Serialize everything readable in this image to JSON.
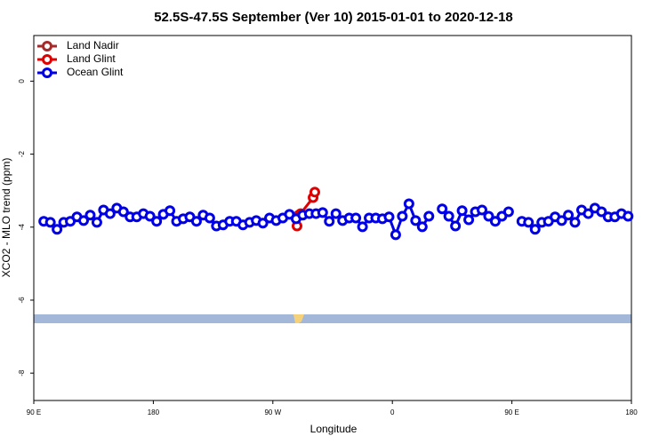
{
  "chart_data": {
    "type": "line",
    "title": "52.5S-47.5S September (Ver 10)   2015-01-01 to 2020-12-18",
    "x_label": "Longitude",
    "y_label": "XCO2 - MLO trend (ppm)",
    "xlim": [
      90,
      540
    ],
    "xticks": [
      {
        "value": 90,
        "label": "90 E"
      },
      {
        "value": 180,
        "label": "180"
      },
      {
        "value": 270,
        "label": "90 W"
      },
      {
        "value": 360,
        "label": "0"
      },
      {
        "value": 450,
        "label": "90 E"
      },
      {
        "value": 540,
        "label": "180"
      }
    ],
    "ylim": [
      -8.75,
      1.25
    ],
    "yticks": [
      0,
      -2,
      -4,
      -6,
      -8
    ],
    "legend": "top-left",
    "series": [
      {
        "name": "Land Nadir",
        "color": "#a52a2a",
        "x": [],
        "values": []
      },
      {
        "name": "Land Glint",
        "color": "#e00000",
        "x": [
          288.2,
          289.5,
          290.9,
          300.3,
          301.6
        ],
        "values": [
          -3.97,
          -3.67,
          -3.63,
          -3.19,
          -3.04
        ]
      },
      {
        "name": "Ocean Glint",
        "color": "#0000e6",
        "x": [
          97.5,
          102.5,
          107.5,
          112.5,
          117.5,
          122.5,
          127.5,
          132.5,
          137.5,
          142.5,
          147.5,
          152.5,
          157.5,
          162.5,
          167.5,
          172.5,
          177.5,
          182.5,
          187.5,
          192.5,
          197.5,
          202.5,
          207.5,
          212.5,
          217.5,
          222.5,
          227.5,
          232.5,
          237.5,
          242.5,
          247.5,
          252.5,
          257.5,
          262.5,
          267.5,
          272.5,
          277.5,
          282.5,
          287.5,
          292.5,
          297.5,
          302.5,
          307.5,
          312.5,
          317.5,
          322.5,
          327.5,
          332.5,
          337.5,
          342.5,
          347.5,
          352.5,
          357.5,
          362.5,
          367.5,
          372.5,
          377.5,
          382.5,
          387.5,
          392.5,
          397.5,
          402.5,
          407.5,
          412.5,
          417.5,
          422.5,
          427.5,
          432.5,
          437.5,
          442.5,
          447.5,
          452.5,
          457.5,
          462.5,
          467.5,
          472.5,
          477.5,
          482.5,
          487.5,
          492.5,
          497.5,
          502.5,
          507.5,
          512.5,
          517.5,
          522.5,
          527.5,
          532.5,
          537.5
        ],
        "values": [
          -3.84,
          -3.87,
          -4.06,
          -3.87,
          -3.84,
          -3.72,
          -3.82,
          -3.67,
          -3.87,
          -3.53,
          -3.63,
          -3.48,
          -3.58,
          -3.72,
          -3.72,
          -3.63,
          -3.7,
          -3.84,
          -3.65,
          -3.55,
          -3.84,
          -3.77,
          -3.72,
          -3.84,
          -3.67,
          -3.75,
          -3.97,
          -3.94,
          -3.84,
          -3.84,
          -3.94,
          -3.87,
          -3.82,
          -3.89,
          -3.75,
          -3.82,
          -3.75,
          -3.65,
          -3.77,
          -3.67,
          -3.63,
          -3.63,
          -3.6,
          -3.84,
          -3.63,
          -3.82,
          -3.75,
          -3.75,
          -3.99,
          -3.75,
          -3.75,
          -3.77,
          -3.72,
          -4.21,
          -3.7,
          -3.36,
          -3.82,
          -3.99,
          -3.7,
          null,
          -3.5,
          -3.7,
          -3.97,
          -3.55,
          -3.8,
          -3.58,
          -3.53,
          -3.7,
          -3.84,
          -3.7,
          -3.58,
          null,
          -3.84,
          -3.87,
          -4.06,
          -3.87,
          -3.84,
          -3.72,
          -3.82,
          -3.67,
          -3.87,
          -3.53,
          -3.63,
          -3.48,
          -3.58,
          -3.72,
          -3.72,
          -3.63,
          -3.7
        ]
      }
    ]
  }
}
